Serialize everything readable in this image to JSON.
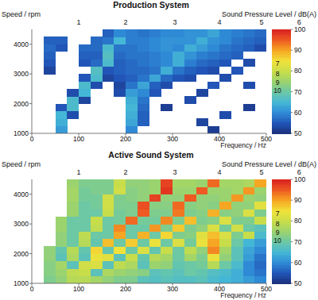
{
  "chart_data": [
    {
      "type": "heatmap",
      "title": "Production System",
      "y_label": "Speed / rpm",
      "x_label": "Frequency / Hz",
      "xlim": [
        0,
        500
      ],
      "xticks": [
        0,
        100,
        200,
        300,
        400,
        500
      ],
      "ylim": [
        1000,
        4500
      ],
      "yticks": [
        1000,
        2000,
        3000,
        4000
      ],
      "grid": false,
      "x_edges": [
        0,
        25,
        50,
        75,
        100,
        125,
        150,
        175,
        200,
        225,
        250,
        275,
        300,
        325,
        350,
        375,
        400,
        425,
        450,
        475,
        500
      ],
      "y_edges": [
        1000,
        1250,
        1500,
        1750,
        2000,
        2250,
        2500,
        2750,
        3000,
        3250,
        3500,
        3750,
        4000,
        4250,
        4500
      ],
      "values": [
        [
          null,
          null,
          62,
          null,
          null,
          null,
          null,
          null,
          60,
          null,
          null,
          null,
          null,
          null,
          null,
          52,
          null,
          null,
          null,
          null
        ],
        [
          null,
          null,
          64,
          null,
          null,
          null,
          null,
          null,
          63,
          56,
          null,
          null,
          null,
          null,
          53,
          null,
          null,
          null,
          null,
          null
        ],
        [
          null,
          null,
          65,
          54,
          null,
          null,
          null,
          null,
          64,
          56,
          null,
          null,
          null,
          null,
          null,
          null,
          54,
          null,
          null,
          null
        ],
        [
          null,
          null,
          55,
          66,
          null,
          null,
          null,
          null,
          65,
          57,
          null,
          52,
          null,
          null,
          null,
          null,
          null,
          null,
          52,
          null
        ],
        [
          null,
          null,
          null,
          66,
          53,
          null,
          null,
          null,
          64,
          58,
          null,
          null,
          null,
          54,
          null,
          null,
          null,
          null,
          null,
          null
        ],
        [
          null,
          null,
          null,
          54,
          65,
          null,
          null,
          54,
          62,
          60,
          55,
          null,
          null,
          null,
          53,
          null,
          null,
          null,
          null,
          null
        ],
        [
          null,
          null,
          null,
          null,
          66,
          54,
          null,
          53,
          58,
          63,
          56,
          54,
          null,
          null,
          null,
          55,
          null,
          null,
          54,
          null
        ],
        [
          null,
          null,
          null,
          null,
          55,
          66,
          53,
          55,
          56,
          58,
          63,
          57,
          55,
          54,
          null,
          null,
          54,
          null,
          null,
          null
        ],
        [
          null,
          53,
          null,
          null,
          null,
          67,
          55,
          56,
          57,
          57,
          58,
          64,
          58,
          56,
          55,
          54,
          null,
          55,
          null,
          null
        ],
        [
          null,
          55,
          null,
          null,
          55,
          57,
          66,
          56,
          57,
          58,
          59,
          60,
          64,
          59,
          57,
          56,
          55,
          null,
          54,
          null
        ],
        [
          null,
          56,
          null,
          null,
          56,
          56,
          67,
          57,
          58,
          58,
          59,
          60,
          64,
          61,
          59,
          58,
          57,
          56,
          null,
          null
        ],
        [
          null,
          57,
          55,
          null,
          57,
          57,
          66,
          58,
          58,
          59,
          60,
          61,
          60,
          64,
          62,
          60,
          58,
          57,
          56,
          54
        ],
        [
          null,
          56,
          56,
          null,
          null,
          57,
          58,
          65,
          59,
          59,
          60,
          61,
          61,
          61,
          64,
          61,
          60,
          58,
          57,
          56
        ],
        [
          null,
          null,
          null,
          null,
          null,
          null,
          56,
          60,
          59,
          58,
          59,
          60,
          60,
          61,
          61,
          63,
          60,
          59,
          58,
          57
        ]
      ],
      "colorbar": {
        "label": "Sound Pressure Level / dB(A)",
        "range": [
          50,
          100
        ],
        "ticks": [
          50,
          60,
          70,
          80,
          90,
          100
        ]
      },
      "annotations": [
        {
          "text": "1",
          "x": 100
        },
        {
          "text": "2",
          "x": 200
        },
        {
          "text": "3",
          "x": 305
        },
        {
          "text": "4",
          "x": 400
        },
        {
          "text": "5",
          "x": 490
        },
        {
          "text": "6",
          "x": 570
        },
        {
          "text": "7",
          "y": 3350
        },
        {
          "text": "8",
          "y": 3000
        },
        {
          "text": "9",
          "y": 2700
        },
        {
          "text": "10",
          "y": 2450
        }
      ]
    },
    {
      "type": "heatmap",
      "title": "Active Sound System",
      "y_label": "Speed / rpm",
      "x_label": "Frequency / Hz",
      "xlim": [
        0,
        500
      ],
      "xticks": [
        0,
        100,
        200,
        300,
        400,
        500
      ],
      "ylim": [
        1000,
        4500
      ],
      "yticks": [
        1000,
        2000,
        3000,
        4000
      ],
      "grid": false,
      "x_edges": [
        0,
        25,
        50,
        75,
        100,
        125,
        150,
        175,
        200,
        225,
        250,
        275,
        300,
        325,
        350,
        375,
        400,
        425,
        450,
        475,
        500
      ],
      "y_edges": [
        1000,
        1250,
        1500,
        1750,
        2000,
        2250,
        2500,
        2750,
        3000,
        3250,
        3500,
        3750,
        4000,
        4250,
        4500
      ],
      "values": [
        [
          null,
          72,
          74,
          78,
          78,
          76,
          74,
          72,
          72,
          68,
          67,
          68,
          67,
          67,
          68,
          66,
          65,
          64,
          62,
          60
        ],
        [
          null,
          73,
          75,
          79,
          80,
          68,
          77,
          75,
          74,
          73,
          68,
          69,
          68,
          70,
          69,
          67,
          66,
          64,
          60,
          58
        ],
        [
          null,
          73,
          76,
          68,
          81,
          82,
          68,
          79,
          77,
          68,
          75,
          74,
          69,
          70,
          71,
          78,
          70,
          66,
          60,
          57
        ],
        [
          null,
          74,
          68,
          77,
          68,
          84,
          83,
          68,
          80,
          69,
          78,
          76,
          70,
          76,
          72,
          84,
          74,
          68,
          62,
          58
        ],
        [
          null,
          74,
          69,
          78,
          69,
          86,
          69,
          85,
          70,
          82,
          69,
          80,
          70,
          79,
          74,
          92,
          76,
          68,
          63,
          60
        ],
        [
          null,
          null,
          74,
          70,
          78,
          69,
          88,
          70,
          87,
          70,
          84,
          70,
          82,
          71,
          84,
          90,
          80,
          70,
          65,
          62
        ],
        [
          null,
          null,
          74,
          70,
          79,
          70,
          70,
          90,
          70,
          89,
          70,
          86,
          72,
          73,
          83,
          88,
          82,
          72,
          80,
          66
        ],
        [
          null,
          null,
          75,
          70,
          70,
          79,
          70,
          92,
          70,
          70,
          91,
          72,
          87,
          72,
          74,
          82,
          71,
          81,
          70,
          68
        ],
        [
          null,
          null,
          75,
          70,
          70,
          80,
          70,
          71,
          94,
          71,
          71,
          92,
          72,
          88,
          72,
          73,
          82,
          72,
          72,
          80
        ],
        [
          null,
          null,
          null,
          75,
          70,
          70,
          80,
          71,
          72,
          95,
          72,
          72,
          93,
          72,
          73,
          89,
          73,
          74,
          82,
          72
        ],
        [
          null,
          null,
          null,
          75,
          70,
          71,
          81,
          72,
          72,
          96,
          73,
          73,
          94,
          73,
          74,
          73,
          90,
          74,
          74,
          83
        ],
        [
          null,
          null,
          null,
          76,
          71,
          71,
          81,
          72,
          73,
          74,
          97,
          74,
          74,
          95,
          74,
          74,
          75,
          91,
          75,
          74
        ],
        [
          null,
          null,
          null,
          76,
          71,
          72,
          72,
          81,
          73,
          74,
          75,
          98,
          75,
          75,
          95,
          75,
          75,
          76,
          91,
          75
        ],
        [
          null,
          null,
          null,
          75,
          72,
          72,
          72,
          80,
          74,
          74,
          75,
          97,
          76,
          76,
          75,
          94,
          76,
          76,
          77,
          90
        ]
      ],
      "colorbar": {
        "label": "Sound Pressure Level / dB(A)",
        "range": [
          50,
          100
        ],
        "ticks": [
          50,
          60,
          70,
          80,
          90,
          100
        ]
      },
      "annotations": [
        {
          "text": "1",
          "x": 100
        },
        {
          "text": "2",
          "x": 200
        },
        {
          "text": "3",
          "x": 305
        },
        {
          "text": "4",
          "x": 400
        },
        {
          "text": "5",
          "x": 490
        },
        {
          "text": "6",
          "x": 570
        },
        {
          "text": "7",
          "y": 3350
        },
        {
          "text": "8",
          "y": 3000
        },
        {
          "text": "9",
          "y": 2700
        },
        {
          "text": "10",
          "y": 2450
        }
      ]
    }
  ]
}
